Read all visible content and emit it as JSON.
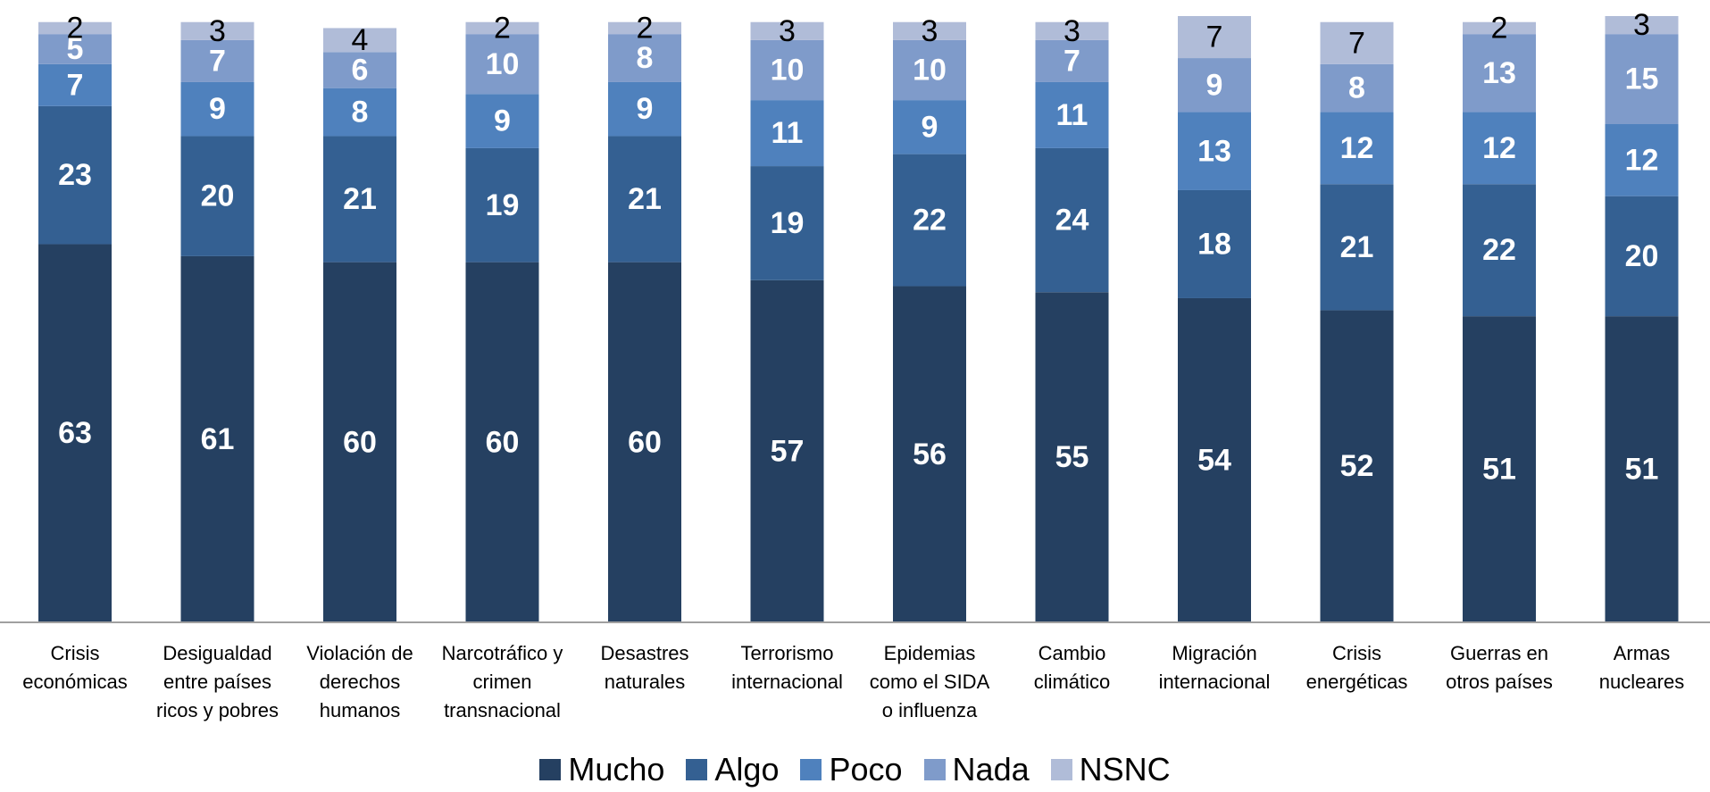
{
  "chart_data": {
    "type": "stacked-bar",
    "categories": [
      "Crisis\neconómicas",
      "Desigualdad\nentre países\nricos y pobres",
      "Violación de\nderechos\nhumanos",
      "Narcotráfico y\ncrimen\ntransnacional",
      "Desastres\nnaturales",
      "Terrorismo\ninternacional",
      "Epidemias\ncomo el SIDA\no influenza",
      "Cambio\nclimático",
      "Migración\ninternacional",
      "Crisis\nenergéticas",
      "Guerras en\notros países",
      "Armas\nnucleares"
    ],
    "series": [
      {
        "name": "Mucho",
        "color": "#254061",
        "label_color": "#ffffff",
        "values": [
          63,
          61,
          60,
          60,
          60,
          57,
          56,
          55,
          54,
          52,
          51,
          51
        ]
      },
      {
        "name": "Algo",
        "color": "#346092",
        "label_color": "#ffffff",
        "values": [
          23,
          20,
          21,
          19,
          21,
          19,
          22,
          24,
          18,
          21,
          22,
          20
        ]
      },
      {
        "name": "Poco",
        "color": "#4f81bd",
        "label_color": "#ffffff",
        "values": [
          7,
          9,
          8,
          9,
          9,
          11,
          9,
          11,
          13,
          12,
          12,
          12
        ]
      },
      {
        "name": "Nada",
        "color": "#7f9bca",
        "label_color": "#ffffff",
        "values": [
          5,
          7,
          6,
          10,
          8,
          10,
          10,
          7,
          9,
          8,
          13,
          15
        ]
      },
      {
        "name": "NSNC",
        "color": "#b0bcd8",
        "label_color": "#000000",
        "values": [
          2,
          3,
          4,
          2,
          2,
          3,
          3,
          3,
          7,
          7,
          2,
          3
        ]
      }
    ],
    "ylim": [
      0,
      101
    ]
  }
}
